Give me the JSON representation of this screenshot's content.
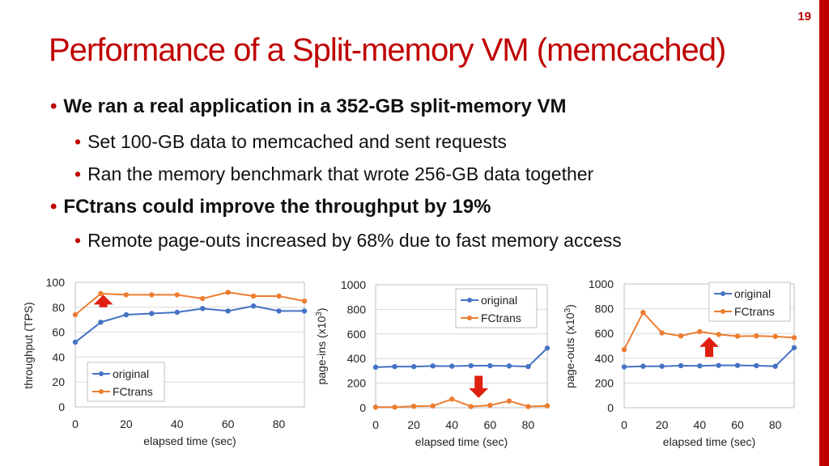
{
  "slide": {
    "number": "19",
    "title": "Performance of a Split-memory VM (memcached)",
    "bullets": [
      {
        "level": 1,
        "text": "We ran a real application in a 352-GB split-memory VM"
      },
      {
        "level": 2,
        "text": "Set 100-GB data to memcached and sent requests"
      },
      {
        "level": 2,
        "text": "Ran the memory benchmark that wrote 256-GB data together"
      },
      {
        "level": 1,
        "text": "FCtrans could improve the throughput by 19%"
      },
      {
        "level": 2,
        "text": "Remote page-outs increased by 68% due to fast memory access"
      }
    ],
    "colors": {
      "accent": "#c00000",
      "original": "#4472c4",
      "fctrans": "#ed7d31",
      "arrow": "#e02010"
    }
  },
  "chart_data": [
    {
      "type": "line",
      "xlabel": "elapsed time (sec)",
      "ylabel": "throughput (TPS)",
      "ylabel_sup": "",
      "ylabel_tail": "",
      "xlim": [
        0,
        90
      ],
      "ylim": [
        0,
        100
      ],
      "x_ticks": [
        0,
        20,
        40,
        60,
        80
      ],
      "y_ticks": [
        0,
        20,
        40,
        60,
        80,
        100
      ],
      "grid": true,
      "legend_position": "bottom-left",
      "annotation": {
        "type": "arrow-up",
        "x": 11,
        "y_from": 80,
        "y_to": 90
      },
      "series": [
        {
          "name": "original",
          "x": [
            0,
            10,
            20,
            30,
            40,
            50,
            60,
            70,
            80,
            90
          ],
          "values": [
            52,
            68,
            74,
            75,
            76,
            79,
            77,
            81,
            77,
            77
          ]
        },
        {
          "name": "FCtrans",
          "x": [
            0,
            10,
            20,
            30,
            40,
            50,
            60,
            70,
            80,
            90
          ],
          "values": [
            74,
            91,
            90,
            90,
            90,
            87,
            92,
            89,
            89,
            85
          ]
        }
      ]
    },
    {
      "type": "line",
      "xlabel": "elapsed time (sec)",
      "ylabel": "page-ins (x10",
      "ylabel_sup": "3",
      "ylabel_tail": ")",
      "xlim": [
        0,
        90
      ],
      "ylim": [
        0,
        1000
      ],
      "x_ticks": [
        0,
        20,
        40,
        60,
        80
      ],
      "y_ticks": [
        0,
        200,
        400,
        600,
        800,
        1000
      ],
      "grid": true,
      "legend_position": "top-right",
      "annotation": {
        "type": "arrow-down",
        "x": 54,
        "y_from": 260,
        "y_to": 80
      },
      "series": [
        {
          "name": "original",
          "x": [
            0,
            10,
            20,
            30,
            40,
            50,
            60,
            70,
            80,
            90
          ],
          "values": [
            330,
            335,
            335,
            340,
            338,
            342,
            342,
            340,
            335,
            485
          ]
        },
        {
          "name": "FCtrans",
          "x": [
            0,
            10,
            20,
            30,
            40,
            50,
            60,
            70,
            80,
            90
          ],
          "values": [
            5,
            5,
            12,
            15,
            70,
            10,
            20,
            55,
            10,
            15
          ]
        }
      ]
    },
    {
      "type": "line",
      "xlabel": "elapsed time (sec)",
      "ylabel": "page-outs (x10",
      "ylabel_sup": "3",
      "ylabel_tail": ")",
      "xlim": [
        0,
        90
      ],
      "ylim": [
        0,
        1000
      ],
      "x_ticks": [
        0,
        20,
        40,
        60,
        80
      ],
      "y_ticks": [
        0,
        200,
        400,
        600,
        800,
        1000
      ],
      "grid": true,
      "legend_position": "top-right",
      "annotation": {
        "type": "arrow-up",
        "x": 45,
        "y_from": 410,
        "y_to": 570
      },
      "series": [
        {
          "name": "original",
          "x": [
            0,
            10,
            20,
            30,
            40,
            50,
            60,
            70,
            80,
            90
          ],
          "values": [
            330,
            335,
            335,
            340,
            338,
            342,
            342,
            340,
            335,
            485
          ]
        },
        {
          "name": "FCtrans",
          "x": [
            0,
            10,
            20,
            30,
            40,
            50,
            60,
            70,
            80,
            90
          ],
          "values": [
            470,
            770,
            605,
            580,
            615,
            592,
            578,
            580,
            576,
            566
          ]
        }
      ]
    }
  ]
}
